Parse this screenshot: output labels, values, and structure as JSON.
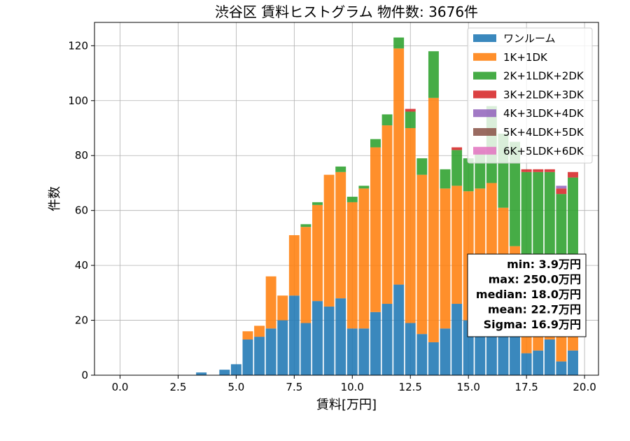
{
  "chart_data": {
    "type": "bar",
    "stacked": true,
    "title": "渋谷区 賃料ヒストグラム 物件数: 3676件",
    "xlabel": "賃料[万円]",
    "ylabel": "件数",
    "xlim": [
      -1.1,
      20.6
    ],
    "ylim": [
      0,
      128.5
    ],
    "xticks": [
      0,
      2.5,
      5,
      7.5,
      10,
      12.5,
      15,
      17.5,
      20
    ],
    "xtick_labels": [
      "0.0",
      "2.5",
      "5.0",
      "7.5",
      "10.0",
      "12.5",
      "15.0",
      "17.5",
      "20.0"
    ],
    "yticks": [
      0,
      20,
      40,
      60,
      80,
      100,
      120
    ],
    "ytick_labels": [
      "0",
      "20",
      "40",
      "60",
      "80",
      "100",
      "120"
    ],
    "grid": true,
    "legend_position": "top-right",
    "bin_width": 0.5,
    "x": [
      3.5,
      4.0,
      4.5,
      5.0,
      5.5,
      6.0,
      6.5,
      7.0,
      7.5,
      8.0,
      8.5,
      9.0,
      9.5,
      10.0,
      10.5,
      11.0,
      11.5,
      12.0,
      12.5,
      13.0,
      13.5,
      14.0,
      14.5,
      15.0,
      15.5,
      16.0,
      16.5,
      17.0,
      17.5,
      18.0,
      18.5,
      19.0,
      19.5
    ],
    "series": [
      {
        "name": "ワンルーム",
        "color": "#1f77b4",
        "values": [
          1,
          0,
          2,
          4,
          13,
          14,
          17,
          20,
          29,
          19,
          27,
          25,
          28,
          17,
          17,
          23,
          26,
          33,
          19,
          15,
          12,
          17,
          26,
          20,
          19,
          20,
          20,
          15,
          8,
          9,
          13,
          5,
          9
        ]
      },
      {
        "name": "1K+1DK",
        "color": "#ff7f0e",
        "values": [
          0,
          0,
          0,
          0,
          3,
          4,
          19,
          9,
          22,
          35,
          35,
          48,
          46,
          46,
          51,
          60,
          65,
          86,
          71,
          58,
          89,
          51,
          43,
          47,
          49,
          50,
          41,
          32,
          35,
          30,
          30,
          30,
          30
        ]
      },
      {
        "name": "2K+1LDK+2DK",
        "color": "#2ca02c",
        "values": [
          0,
          0,
          0,
          0,
          0,
          0,
          0,
          0,
          0,
          1,
          1,
          0,
          2,
          2,
          1,
          3,
          4,
          4,
          6,
          6,
          17,
          7,
          13,
          12,
          14,
          28,
          27,
          38,
          31,
          35,
          31,
          31,
          33
        ]
      },
      {
        "name": "3K+2LDK+3DK",
        "color": "#d62728",
        "values": [
          0,
          0,
          0,
          0,
          0,
          0,
          0,
          0,
          0,
          0,
          0,
          0,
          0,
          0,
          0,
          0,
          0,
          0,
          1,
          0,
          0,
          0,
          1,
          0,
          0,
          0,
          0,
          0,
          1,
          1,
          1,
          2,
          2
        ]
      },
      {
        "name": "4K+3LDK+4DK",
        "color": "#9467bd",
        "values": [
          0,
          0,
          0,
          0,
          0,
          0,
          0,
          0,
          0,
          0,
          0,
          0,
          0,
          0,
          0,
          0,
          0,
          0,
          0,
          0,
          0,
          0,
          0,
          0,
          0,
          0,
          0,
          0,
          0,
          0,
          0,
          1,
          0
        ]
      },
      {
        "name": "5K+4LDK+5DK",
        "color": "#8c564b",
        "values": [
          0,
          0,
          0,
          0,
          0,
          0,
          0,
          0,
          0,
          0,
          0,
          0,
          0,
          0,
          0,
          0,
          0,
          0,
          0,
          0,
          0,
          0,
          0,
          0,
          0,
          0,
          0,
          0,
          0,
          0,
          0,
          0,
          0
        ]
      },
      {
        "name": "6K+5LDK+6DK",
        "color": "#e377c2",
        "values": [
          0,
          0,
          0,
          0,
          0,
          0,
          0,
          0,
          0,
          0,
          0,
          0,
          0,
          0,
          0,
          0,
          0,
          0,
          0,
          0,
          0,
          0,
          0,
          0,
          0,
          0,
          0,
          0,
          0,
          0,
          0,
          0,
          0
        ]
      }
    ],
    "stats_box": [
      "min: 3.9万円",
      "max: 250.0万円",
      "median: 18.0万円",
      "mean: 22.7万円",
      "Sigma: 16.9万円"
    ]
  }
}
